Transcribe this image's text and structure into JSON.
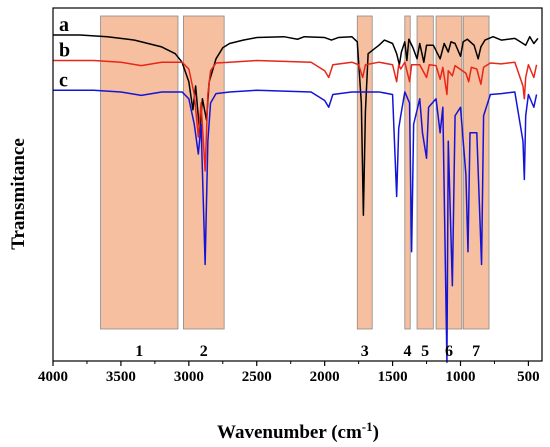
{
  "chart_data": {
    "type": "line",
    "xlabel": "Wavenumber (cm",
    "xlabel_sup": "-1",
    "xlabel_end": ")",
    "ylabel": "Transmitance",
    "xlim": [
      4000,
      400
    ],
    "x_ticks": [
      4000,
      3500,
      3000,
      2500,
      2000,
      1500,
      1000,
      500
    ],
    "grid": false,
    "highlight_color": "#f4b48e",
    "regions": [
      {
        "label": "1",
        "from": 3650,
        "to": 3080
      },
      {
        "label": "2",
        "from": 3040,
        "to": 2740
      },
      {
        "label": "3",
        "from": 1760,
        "to": 1650
      },
      {
        "label": "4",
        "from": 1410,
        "to": 1370
      },
      {
        "label": "5",
        "from": 1320,
        "to": 1200
      },
      {
        "label": "6",
        "from": 1180,
        "to": 990
      },
      {
        "label": "7",
        "from": 980,
        "to": 790
      }
    ],
    "series": [
      {
        "name": "a",
        "color": "#000000",
        "baseline": 0.0,
        "points": [
          [
            4000,
            0.0
          ],
          [
            3800,
            0.0
          ],
          [
            3600,
            0.02
          ],
          [
            3400,
            0.06
          ],
          [
            3200,
            0.14
          ],
          [
            3100,
            0.22
          ],
          [
            3050,
            0.32
          ],
          [
            3000,
            0.55
          ],
          [
            2970,
            0.88
          ],
          [
            2950,
            0.6
          ],
          [
            2920,
            1.15
          ],
          [
            2900,
            0.75
          ],
          [
            2870,
            1.0
          ],
          [
            2850,
            0.55
          ],
          [
            2800,
            0.28
          ],
          [
            2750,
            0.15
          ],
          [
            2700,
            0.1
          ],
          [
            2600,
            0.06
          ],
          [
            2500,
            0.03
          ],
          [
            2300,
            0.02
          ],
          [
            2200,
            0.05
          ],
          [
            2150,
            0.02
          ],
          [
            2000,
            0.03
          ],
          [
            1950,
            0.06
          ],
          [
            1900,
            0.03
          ],
          [
            1800,
            0.02
          ],
          [
            1760,
            0.08
          ],
          [
            1730,
            0.8
          ],
          [
            1715,
            2.12
          ],
          [
            1700,
            0.9
          ],
          [
            1680,
            0.22
          ],
          [
            1600,
            0.12
          ],
          [
            1560,
            0.06
          ],
          [
            1500,
            0.1
          ],
          [
            1470,
            0.22
          ],
          [
            1450,
            0.35
          ],
          [
            1435,
            0.2
          ],
          [
            1410,
            0.08
          ],
          [
            1395,
            0.3
          ],
          [
            1380,
            0.05
          ],
          [
            1350,
            0.15
          ],
          [
            1320,
            0.28
          ],
          [
            1300,
            0.1
          ],
          [
            1270,
            0.32
          ],
          [
            1250,
            0.12
          ],
          [
            1200,
            0.12
          ],
          [
            1150,
            0.28
          ],
          [
            1120,
            0.1
          ],
          [
            1090,
            0.2
          ],
          [
            1070,
            0.08
          ],
          [
            1040,
            0.1
          ],
          [
            1000,
            0.25
          ],
          [
            980,
            0.08
          ],
          [
            950,
            0.05
          ],
          [
            900,
            0.12
          ],
          [
            870,
            0.28
          ],
          [
            850,
            0.14
          ],
          [
            820,
            0.06
          ],
          [
            760,
            0.02
          ],
          [
            700,
            0.06
          ],
          [
            600,
            0.04
          ],
          [
            560,
            0.08
          ],
          [
            520,
            0.12
          ],
          [
            490,
            0.02
          ],
          [
            460,
            0.1
          ],
          [
            430,
            0.04
          ]
        ]
      },
      {
        "name": "b",
        "color": "#e8261a",
        "baseline": 0.3,
        "points": [
          [
            4000,
            0.0
          ],
          [
            3700,
            0.0
          ],
          [
            3500,
            0.02
          ],
          [
            3350,
            0.06
          ],
          [
            3200,
            0.02
          ],
          [
            3050,
            0.02
          ],
          [
            3000,
            0.1
          ],
          [
            2960,
            0.4
          ],
          [
            2930,
            0.9
          ],
          [
            2910,
            0.5
          ],
          [
            2880,
            1.3
          ],
          [
            2860,
            0.4
          ],
          [
            2840,
            0.12
          ],
          [
            2800,
            0.03
          ],
          [
            2700,
            0.02
          ],
          [
            2500,
            0.0
          ],
          [
            2100,
            0.02
          ],
          [
            2000,
            0.12
          ],
          [
            1970,
            0.2
          ],
          [
            1940,
            0.05
          ],
          [
            1800,
            0.02
          ],
          [
            1750,
            0.05
          ],
          [
            1720,
            0.2
          ],
          [
            1700,
            0.05
          ],
          [
            1600,
            0.02
          ],
          [
            1500,
            0.05
          ],
          [
            1470,
            0.25
          ],
          [
            1455,
            0.05
          ],
          [
            1440,
            0.1
          ],
          [
            1410,
            0.02
          ],
          [
            1375,
            0.25
          ],
          [
            1360,
            0.05
          ],
          [
            1300,
            0.05
          ],
          [
            1250,
            0.2
          ],
          [
            1230,
            0.05
          ],
          [
            1180,
            0.06
          ],
          [
            1150,
            0.22
          ],
          [
            1130,
            0.08
          ],
          [
            1100,
            0.4
          ],
          [
            1090,
            0.12
          ],
          [
            1060,
            0.18
          ],
          [
            1040,
            0.06
          ],
          [
            960,
            0.15
          ],
          [
            940,
            0.25
          ],
          [
            920,
            0.08
          ],
          [
            880,
            0.1
          ],
          [
            850,
            0.28
          ],
          [
            830,
            0.08
          ],
          [
            780,
            0.03
          ],
          [
            700,
            0.04
          ],
          [
            600,
            0.02
          ],
          [
            540,
            0.3
          ],
          [
            530,
            0.45
          ],
          [
            520,
            0.2
          ],
          [
            500,
            0.05
          ],
          [
            460,
            0.2
          ],
          [
            440,
            0.05
          ]
        ]
      },
      {
        "name": "c",
        "color": "#1414d8",
        "baseline": 0.65,
        "points": [
          [
            4000,
            0.0
          ],
          [
            3700,
            0.0
          ],
          [
            3500,
            0.02
          ],
          [
            3350,
            0.06
          ],
          [
            3200,
            0.02
          ],
          [
            3050,
            0.02
          ],
          [
            3000,
            0.1
          ],
          [
            2960,
            0.4
          ],
          [
            2930,
            0.75
          ],
          [
            2910,
            0.4
          ],
          [
            2880,
            2.05
          ],
          [
            2860,
            0.6
          ],
          [
            2840,
            0.15
          ],
          [
            2800,
            0.04
          ],
          [
            2700,
            0.02
          ],
          [
            2500,
            0.0
          ],
          [
            2100,
            0.02
          ],
          [
            2000,
            0.12
          ],
          [
            1970,
            0.2
          ],
          [
            1940,
            0.05
          ],
          [
            1800,
            0.02
          ],
          [
            1750,
            0.02
          ],
          [
            1700,
            0.02
          ],
          [
            1600,
            0.02
          ],
          [
            1500,
            0.05
          ],
          [
            1470,
            1.25
          ],
          [
            1455,
            0.45
          ],
          [
            1440,
            0.3
          ],
          [
            1410,
            0.02
          ],
          [
            1375,
            0.15
          ],
          [
            1360,
            1.9
          ],
          [
            1345,
            0.4
          ],
          [
            1300,
            0.1
          ],
          [
            1280,
            0.5
          ],
          [
            1250,
            0.8
          ],
          [
            1235,
            0.2
          ],
          [
            1180,
            0.1
          ],
          [
            1150,
            0.5
          ],
          [
            1130,
            0.2
          ],
          [
            1100,
            3.2
          ],
          [
            1090,
            0.6
          ],
          [
            1060,
            2.3
          ],
          [
            1040,
            0.3
          ],
          [
            1000,
            0.2
          ],
          [
            960,
            1.0
          ],
          [
            945,
            1.9
          ],
          [
            930,
            0.5
          ],
          [
            880,
            0.5
          ],
          [
            845,
            2.05
          ],
          [
            830,
            0.3
          ],
          [
            780,
            0.05
          ],
          [
            700,
            0.04
          ],
          [
            600,
            0.02
          ],
          [
            540,
            0.6
          ],
          [
            530,
            1.05
          ],
          [
            520,
            0.3
          ],
          [
            500,
            0.05
          ],
          [
            460,
            0.2
          ],
          [
            440,
            0.05
          ]
        ]
      }
    ]
  }
}
